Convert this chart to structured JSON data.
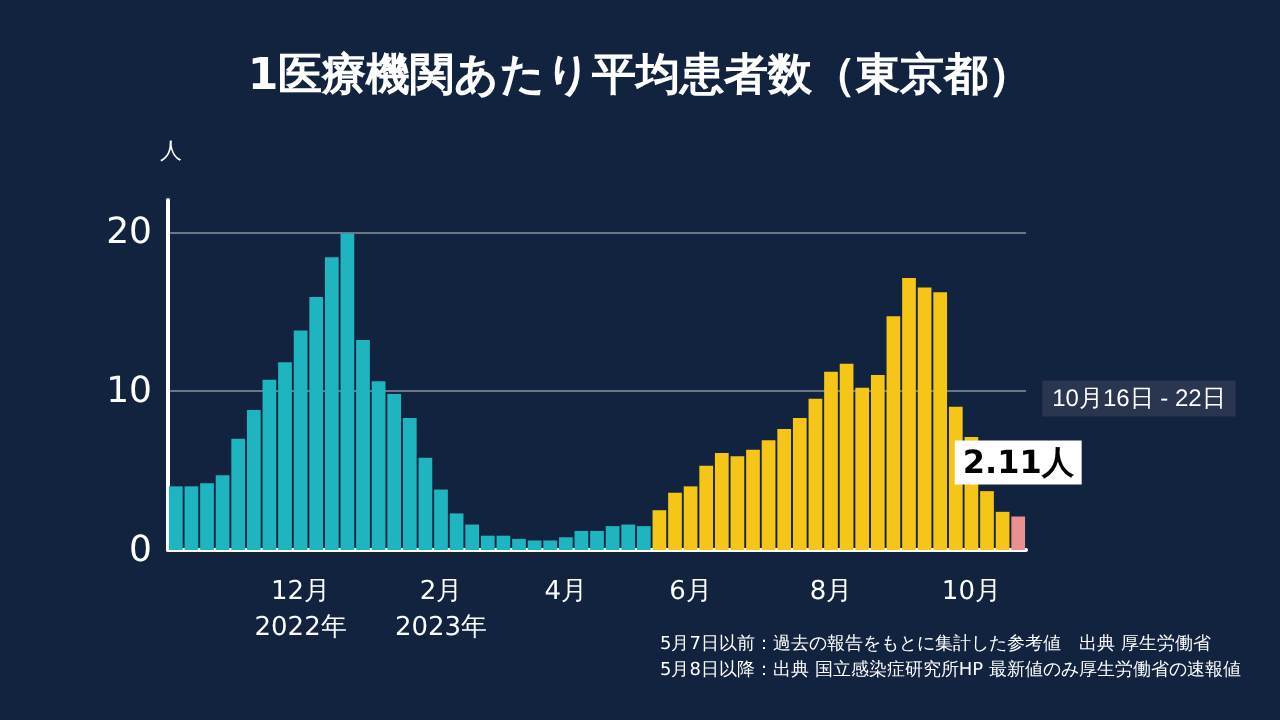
{
  "chart_data": {
    "type": "bar",
    "title": "1医療機関あたり平均患者数（東京都）",
    "ylabel": "人",
    "categories": [
      null,
      null,
      null,
      null,
      null,
      null,
      null,
      null,
      "12月\n2022年",
      null,
      null,
      null,
      null,
      null,
      null,
      null,
      null,
      "2月\n2023年",
      null,
      null,
      null,
      null,
      null,
      null,
      null,
      "4月",
      null,
      null,
      null,
      null,
      null,
      null,
      null,
      "6月",
      null,
      null,
      null,
      null,
      null,
      null,
      null,
      null,
      "8月",
      null,
      null,
      null,
      null,
      null,
      null,
      null,
      null,
      "10月",
      null,
      null,
      null
    ],
    "values": [
      4.0,
      4.0,
      4.2,
      4.7,
      7.0,
      8.8,
      10.7,
      11.8,
      13.8,
      15.9,
      18.4,
      19.9,
      13.2,
      10.6,
      9.8,
      8.3,
      5.8,
      3.8,
      2.3,
      1.6,
      0.9,
      0.9,
      0.7,
      0.6,
      0.6,
      0.8,
      1.2,
      1.2,
      1.5,
      1.6,
      1.5,
      2.5,
      3.6,
      4.0,
      5.3,
      6.1,
      5.9,
      6.3,
      6.9,
      7.6,
      8.3,
      9.5,
      11.2,
      11.7,
      10.2,
      11.0,
      14.7,
      17.1,
      16.5,
      16.2,
      9.0,
      7.1,
      3.7,
      2.4,
      2.11
    ],
    "colors": [
      "#1fb5c0",
      "#1fb5c0",
      "#1fb5c0",
      "#1fb5c0",
      "#1fb5c0",
      "#1fb5c0",
      "#1fb5c0",
      "#1fb5c0",
      "#1fb5c0",
      "#1fb5c0",
      "#1fb5c0",
      "#1fb5c0",
      "#1fb5c0",
      "#1fb5c0",
      "#1fb5c0",
      "#1fb5c0",
      "#1fb5c0",
      "#1fb5c0",
      "#1fb5c0",
      "#1fb5c0",
      "#1fb5c0",
      "#1fb5c0",
      "#1fb5c0",
      "#1fb5c0",
      "#1fb5c0",
      "#1fb5c0",
      "#1fb5c0",
      "#1fb5c0",
      "#1fb5c0",
      "#1fb5c0",
      "#1fb5c0",
      "#f5c518",
      "#f5c518",
      "#f5c518",
      "#f5c518",
      "#f5c518",
      "#f5c518",
      "#f5c518",
      "#f5c518",
      "#f5c518",
      "#f5c518",
      "#f5c518",
      "#f5c518",
      "#f5c518",
      "#f5c518",
      "#f5c518",
      "#f5c518",
      "#f5c518",
      "#f5c518",
      "#f5c518",
      "#f5c518",
      "#f5c518",
      "#f5c518",
      "#f5c518",
      "#e8908f"
    ],
    "value_labels": [
      null,
      null,
      null,
      null,
      null,
      null,
      null,
      null,
      null,
      null,
      null,
      null,
      null,
      null,
      null,
      null,
      null,
      null,
      null,
      null,
      null,
      null,
      null,
      null,
      null,
      null,
      null,
      null,
      null,
      null,
      null,
      null,
      null,
      null,
      null,
      null,
      null,
      null,
      null,
      null,
      null,
      null,
      null,
      null,
      null,
      null,
      null,
      null,
      null,
      null,
      null,
      null,
      null,
      null,
      "2.11人"
    ],
    "ylim": [
      0,
      22
    ],
    "yticks": [
      0,
      10,
      20
    ],
    "grid": "y",
    "annotations": [
      "10月16日 - 22日",
      "5月7日以前：過去の報告をもとに集計した参考値　出典 厚生労働省",
      "5月8日以降：出典 国立感染症研究所HP 最新値のみ厚生労働省の速報値"
    ]
  }
}
